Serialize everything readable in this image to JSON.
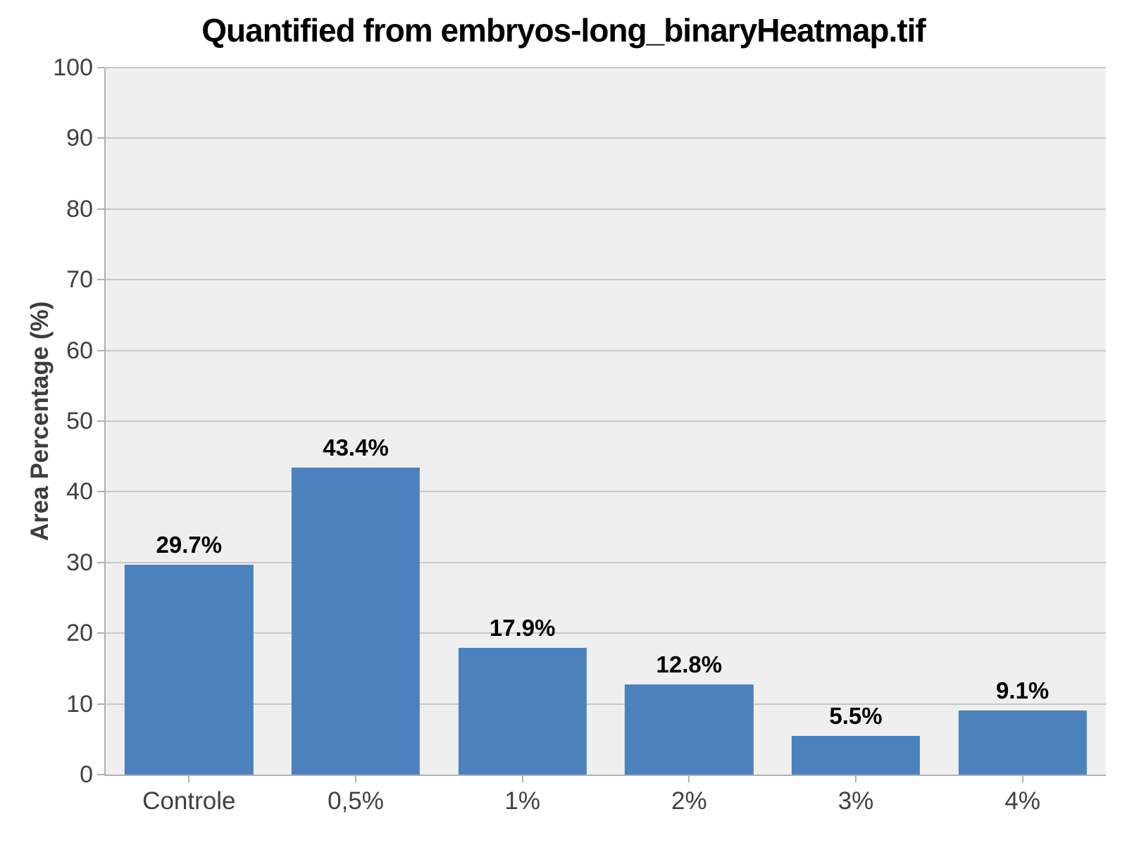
{
  "chart_data": {
    "type": "bar",
    "title": "Quantified from embryos-long_binaryHeatmap.tif",
    "xlabel": "",
    "ylabel": "Area Percentage (%)",
    "categories": [
      "Controle",
      "0,5%",
      "1%",
      "2%",
      "3%",
      "4%"
    ],
    "values": [
      29.7,
      43.4,
      17.9,
      12.8,
      5.5,
      9.1
    ],
    "value_labels": [
      "29.7%",
      "43.4%",
      "17.9%",
      "12.8%",
      "5.5%",
      "9.1%"
    ],
    "ylim": [
      0,
      100
    ],
    "y_ticks": [
      0,
      10,
      20,
      30,
      40,
      50,
      60,
      70,
      80,
      90,
      100
    ],
    "grid": true,
    "legend": false,
    "colors": {
      "bar_fill": "#4d81bd",
      "plot_background": "#efefef",
      "gridline": "#c8c8c8",
      "axis_line": "#b0b0b0",
      "tick_text": "#404040",
      "title_text": "#000000"
    }
  }
}
